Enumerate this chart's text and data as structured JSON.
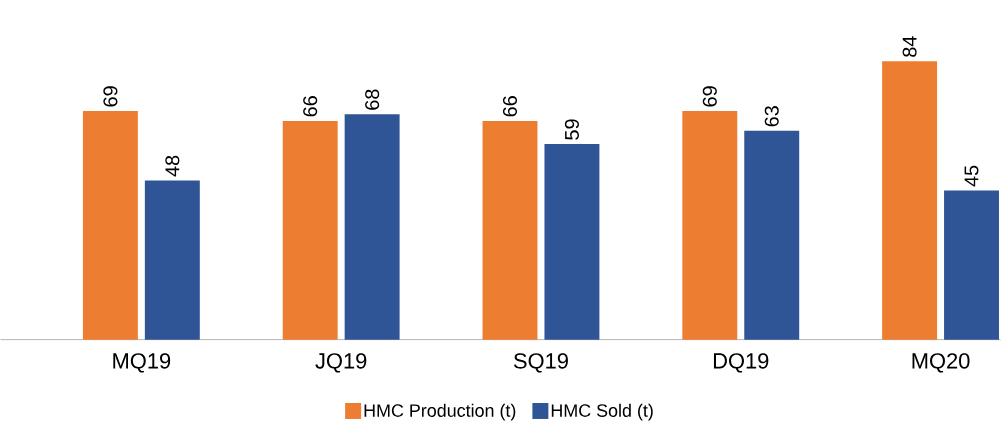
{
  "chart_data": {
    "type": "bar",
    "categories": [
      "MQ19",
      "JQ19",
      "SQ19",
      "DQ19",
      "MQ20"
    ],
    "series": [
      {
        "name": "HMC Production (t)",
        "color": "#ed7d31",
        "values": [
          69,
          66,
          66,
          69,
          84
        ]
      },
      {
        "name": "HMC Sold (t)",
        "color": "#2f5597",
        "values": [
          48,
          68,
          59,
          63,
          45
        ]
      }
    ],
    "data_labels": true,
    "legend": "bottom"
  }
}
